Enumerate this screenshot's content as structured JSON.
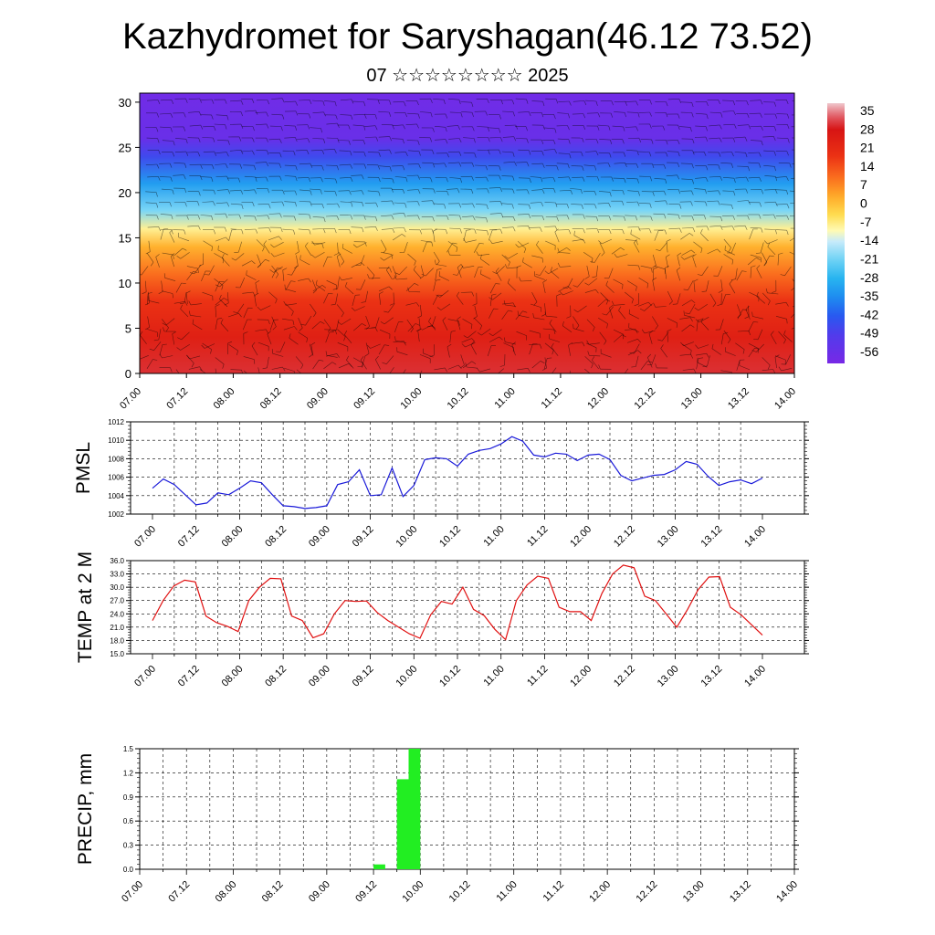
{
  "header": {
    "title": "Kazhydromet for Saryshagan(46.12 73.52)",
    "subtitle": "07 ☆☆☆☆☆☆☆☆ 2025"
  },
  "colors": {
    "pmsl_line": "#1a1ad9",
    "temp_line": "#e01010",
    "precip_bar": "#22ee22",
    "grid": "#000000"
  },
  "chart_data": [
    {
      "type": "heatmap",
      "title": "",
      "xlabel": "",
      "ylabel": "",
      "x_ticks": [
        "07.00",
        "07.12",
        "08.00",
        "08.12",
        "09.00",
        "09.12",
        "10.00",
        "10.12",
        "11.00",
        "11.12",
        "12.00",
        "12.12",
        "13.00",
        "13.12",
        "14.00"
      ],
      "y_ticks": [
        0,
        5,
        10,
        15,
        20,
        25,
        30
      ],
      "ylim": [
        0,
        31
      ],
      "field": "temperature with wind barbs",
      "colorbar_labels": [
        35,
        28,
        21,
        14,
        7,
        0,
        -7,
        -14,
        -21,
        -28,
        -35,
        -42,
        -49,
        -56
      ],
      "colorbar_range": [
        -60,
        38
      ],
      "profile": [
        {
          "level": 0,
          "value": 30
        },
        {
          "level": 4,
          "value": 24
        },
        {
          "level": 8,
          "value": 18
        },
        {
          "level": 11,
          "value": 10
        },
        {
          "level": 14,
          "value": 2
        },
        {
          "level": 16,
          "value": -8
        },
        {
          "level": 18,
          "value": -20
        },
        {
          "level": 21,
          "value": -32
        },
        {
          "level": 24,
          "value": -46
        },
        {
          "level": 26,
          "value": -56
        },
        {
          "level": 31,
          "value": -58
        }
      ]
    },
    {
      "type": "line",
      "ylabel": "PMSL",
      "ylim": [
        1002,
        1012
      ],
      "y_ticks": [
        1002,
        1004,
        1006,
        1008,
        1010,
        1012
      ],
      "x_ticks": [
        "07.00",
        "07.12",
        "08.00",
        "08.12",
        "09.00",
        "09.12",
        "10.00",
        "10.12",
        "11.00",
        "11.12",
        "12.00",
        "12.12",
        "13.00",
        "13.12",
        "14.00"
      ],
      "series": [
        {
          "values": [
            1004.8,
            1005.8,
            1005.2,
            1004.1,
            1003.0,
            1003.2,
            1004.3,
            1004.1,
            1004.8,
            1005.6,
            1005.4,
            1004.1,
            1002.9,
            1002.8,
            1002.6,
            1002.7,
            1002.9,
            1005.2,
            1005.5,
            1006.8,
            1004.0,
            1004.1,
            1007.0,
            1003.9,
            1005.1,
            1007.9,
            1008.1,
            1008.0,
            1007.2,
            1008.5,
            1008.9,
            1009.1,
            1009.6,
            1010.4,
            1009.9,
            1008.4,
            1008.2,
            1008.6,
            1008.5,
            1007.8,
            1008.4,
            1008.5,
            1007.9,
            1006.2,
            1005.6,
            1005.9,
            1006.2,
            1006.3,
            1006.8,
            1007.7,
            1007.4,
            1006.1,
            1005.1,
            1005.5,
            1005.7,
            1005.3,
            1005.9
          ]
        }
      ]
    },
    {
      "type": "line",
      "ylabel": "TEMP at 2 M",
      "ylim": [
        15,
        36
      ],
      "y_ticks": [
        "15.0",
        "18.0",
        "21.0",
        "24.0",
        "27.0",
        "30.0",
        "33.0",
        "36.0"
      ],
      "x_ticks": [
        "07.00",
        "07.12",
        "08.00",
        "08.12",
        "09.00",
        "09.12",
        "10.00",
        "10.12",
        "11.00",
        "11.12",
        "12.00",
        "12.12",
        "13.00",
        "13.12",
        "14.00"
      ],
      "series": [
        {
          "values": [
            22.5,
            27.0,
            30.3,
            31.6,
            31.2,
            23.5,
            22.0,
            21.2,
            20.0,
            27.0,
            30.0,
            32.0,
            31.9,
            23.5,
            22.5,
            18.6,
            19.5,
            24.0,
            27.0,
            26.8,
            26.9,
            24.3,
            22.5,
            21.0,
            19.5,
            18.5,
            23.8,
            26.8,
            26.2,
            30.0,
            25.0,
            23.6,
            20.5,
            18.2,
            27.0,
            30.5,
            32.5,
            32.0,
            25.5,
            24.5,
            24.5,
            22.5,
            28.6,
            33.0,
            35.0,
            34.4,
            28.0,
            27.0,
            24.0,
            21.0,
            25.0,
            29.5,
            32.3,
            32.4,
            25.5,
            23.8,
            21.5,
            19.2
          ]
        }
      ]
    },
    {
      "type": "bar",
      "ylabel": "PRECIP, mm",
      "ylim": [
        0,
        1.5
      ],
      "y_ticks": [
        "0.0",
        "0.3",
        "0.6",
        "0.9",
        "1.2",
        "1.5"
      ],
      "x_ticks": [
        "07.00",
        "07.12",
        "08.00",
        "08.12",
        "09.00",
        "09.12",
        "10.00",
        "10.12",
        "11.00",
        "11.12",
        "12.00",
        "12.12",
        "13.00",
        "13.12",
        "14.00"
      ],
      "bins": [
        {
          "start_hour": 60,
          "end_hour": 63,
          "value": 0.06
        },
        {
          "start_hour": 66,
          "end_hour": 69,
          "value": 1.12
        },
        {
          "start_hour": 69,
          "end_hour": 72,
          "value": 1.5
        }
      ]
    }
  ]
}
